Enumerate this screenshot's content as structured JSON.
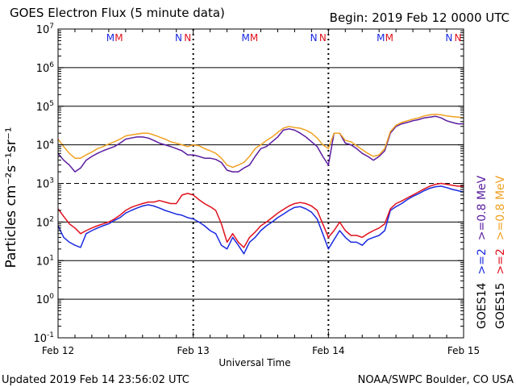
{
  "title": "GOES Electron Flux (5 minute data)",
  "begin_label": "Begin: 2019 Feb 12 0000 UTC",
  "updated_label": "Updated 2019 Feb 14 23:56:02 UTC",
  "credit_label": "NOAA/SWPC Boulder, CO USA",
  "colors": {
    "goes14_ge2": "#1a2ae0",
    "goes15_ge2": "#e0121e",
    "goes14_ge08": "#5a1ca0",
    "goes15_ge08": "#f0a020",
    "m_marker": "#1a2ae0",
    "m_marker_alt": "#e0121e"
  },
  "chart_data": {
    "type": "line",
    "title": "GOES Electron Flux (5 minute data)",
    "xlabel": "Universal Time",
    "ylabel": "Particles cm⁻²s⁻¹sr⁻¹",
    "y_scale": "log",
    "ylim": [
      0.1,
      10000000
    ],
    "xlim": [
      0,
      72
    ],
    "x_unit": "hours since 2019 Feb 12 0000 UTC",
    "x_ticks": [
      {
        "x": 0,
        "label": "Feb 12"
      },
      {
        "x": 24,
        "label": "Feb 13"
      },
      {
        "x": 48,
        "label": "Feb 14"
      },
      {
        "x": 72,
        "label": "Feb 15"
      }
    ],
    "y_ticks": [
      {
        "v": 0.1,
        "base": "10",
        "exp": "-1"
      },
      {
        "v": 1,
        "base": "10",
        "exp": "0"
      },
      {
        "v": 10,
        "base": "10",
        "exp": "1"
      },
      {
        "v": 100,
        "base": "10",
        "exp": "2"
      },
      {
        "v": 1000,
        "base": "10",
        "exp": "3"
      },
      {
        "v": 10000,
        "base": "10",
        "exp": "4"
      },
      {
        "v": 100000,
        "base": "10",
        "exp": "5"
      },
      {
        "v": 1000000,
        "base": "10",
        "exp": "6"
      },
      {
        "v": 10000000,
        "base": "10",
        "exp": "7"
      }
    ],
    "threshold": 1000,
    "markers": [
      {
        "x": 9.3,
        "label": "M",
        "color": "#1a2ae0"
      },
      {
        "x": 10.8,
        "label": "M",
        "color": "#e0121e"
      },
      {
        "x": 21.4,
        "label": "N",
        "color": "#1a2ae0"
      },
      {
        "x": 23.0,
        "label": "N",
        "color": "#e0121e"
      },
      {
        "x": 33.3,
        "label": "M",
        "color": "#1a2ae0"
      },
      {
        "x": 34.8,
        "label": "M",
        "color": "#e0121e"
      },
      {
        "x": 45.4,
        "label": "N",
        "color": "#1a2ae0"
      },
      {
        "x": 47.0,
        "label": "N",
        "color": "#e0121e"
      },
      {
        "x": 57.3,
        "label": "M",
        "color": "#1a2ae0"
      },
      {
        "x": 58.8,
        "label": "M",
        "color": "#e0121e"
      },
      {
        "x": 69.4,
        "label": "N",
        "color": "#1a2ae0"
      },
      {
        "x": 71.0,
        "label": "N",
        "color": "#e0121e"
      }
    ],
    "legend": {
      "left_col": [
        "GOES14",
        ">=2",
        ">=0.8 MeV"
      ],
      "right_col": [
        "GOES15",
        ">=2",
        ">=0.8 MeV"
      ],
      "left_colors": [
        "#000000",
        "#1a2ae0",
        "#5a1ca0"
      ],
      "right_colors": [
        "#000000",
        "#e0121e",
        "#f0a020"
      ]
    },
    "series": [
      {
        "name": "GOES14 >=0.8 MeV",
        "color": "#5a1ca0",
        "x": [
          0,
          1,
          2,
          3,
          4,
          5,
          6,
          7,
          8,
          9,
          10,
          11,
          12,
          13,
          14,
          15,
          16,
          17,
          18,
          19,
          20,
          21,
          22,
          23,
          24,
          25,
          26,
          27,
          28,
          29,
          30,
          31,
          32,
          33,
          34,
          35,
          36,
          37,
          38,
          39,
          40,
          41,
          42,
          43,
          44,
          45,
          46,
          47,
          48,
          49,
          50,
          51,
          52,
          53,
          54,
          55,
          56,
          57,
          58,
          59,
          60,
          61,
          62,
          63,
          64,
          65,
          66,
          67,
          68,
          69,
          70,
          71,
          72
        ],
        "values": [
          6000,
          4000,
          3000,
          2000,
          2500,
          4000,
          5000,
          6000,
          7000,
          8000,
          9000,
          11000,
          14000,
          15000,
          16000,
          16000,
          15000,
          13000,
          11000,
          10000,
          9000,
          8000,
          7000,
          5500,
          5500,
          5000,
          4500,
          4500,
          4200,
          3500,
          2200,
          2000,
          2000,
          2500,
          3000,
          5000,
          8000,
          9000,
          12000,
          16000,
          24000,
          26000,
          24000,
          20000,
          16000,
          12000,
          9000,
          5000,
          3000,
          20000,
          20000,
          11000,
          10000,
          8000,
          6000,
          5000,
          4000,
          5000,
          7000,
          20000,
          30000,
          35000,
          38000,
          42000,
          45000,
          50000,
          52000,
          55000,
          50000,
          42000,
          38000,
          35000,
          35000
        ]
      },
      {
        "name": "GOES15 >=0.8 MeV",
        "color": "#f0a020",
        "x": [
          0,
          1,
          2,
          3,
          4,
          5,
          6,
          7,
          8,
          9,
          10,
          11,
          12,
          13,
          14,
          15,
          16,
          17,
          18,
          19,
          20,
          21,
          22,
          23,
          24,
          25,
          26,
          27,
          28,
          29,
          30,
          31,
          32,
          33,
          34,
          35,
          36,
          37,
          38,
          39,
          40,
          41,
          42,
          43,
          44,
          45,
          46,
          47,
          48,
          49,
          50,
          51,
          52,
          53,
          54,
          55,
          56,
          57,
          58,
          59,
          60,
          61,
          62,
          63,
          64,
          65,
          66,
          67,
          68,
          69,
          70,
          71,
          72
        ],
        "values": [
          14000,
          9000,
          6000,
          4500,
          4500,
          5500,
          6500,
          8000,
          9000,
          10500,
          12000,
          14000,
          17000,
          18000,
          19000,
          20000,
          20000,
          18000,
          16000,
          14000,
          12000,
          11000,
          10000,
          9000,
          10000,
          9500,
          8000,
          7000,
          6000,
          4500,
          3000,
          2600,
          3000,
          3500,
          5000,
          8000,
          10000,
          13000,
          16000,
          21000,
          27000,
          30000,
          28000,
          27000,
          24000,
          20000,
          15000,
          10000,
          8000,
          20000,
          20000,
          13000,
          12000,
          9500,
          7500,
          6000,
          5000,
          5500,
          8000,
          22000,
          32000,
          38000,
          42000,
          46000,
          50000,
          56000,
          60000,
          62000,
          60000,
          56000,
          54000,
          52000,
          50000
        ]
      },
      {
        "name": "GOES14 >=2 MeV",
        "color": "#1a2ae0",
        "x": [
          0,
          1,
          2,
          3,
          4,
          5,
          6,
          7,
          8,
          9,
          10,
          11,
          12,
          13,
          14,
          15,
          16,
          17,
          18,
          19,
          20,
          21,
          22,
          23,
          24,
          25,
          26,
          27,
          28,
          29,
          30,
          31,
          32,
          33,
          34,
          35,
          36,
          37,
          38,
          39,
          40,
          41,
          42,
          43,
          44,
          45,
          46,
          47,
          48,
          49,
          50,
          51,
          52,
          53,
          54,
          55,
          56,
          57,
          58,
          59,
          60,
          61,
          62,
          63,
          64,
          65,
          66,
          67,
          68,
          69,
          70,
          71,
          72
        ],
        "values": [
          80,
          40,
          30,
          25,
          22,
          50,
          60,
          70,
          80,
          90,
          110,
          130,
          170,
          200,
          230,
          260,
          280,
          260,
          230,
          200,
          180,
          160,
          150,
          130,
          120,
          100,
          80,
          60,
          50,
          25,
          20,
          40,
          25,
          15,
          30,
          40,
          60,
          80,
          100,
          130,
          160,
          200,
          240,
          250,
          220,
          180,
          120,
          50,
          20,
          35,
          60,
          40,
          30,
          30,
          25,
          35,
          40,
          45,
          60,
          200,
          250,
          300,
          380,
          460,
          540,
          650,
          750,
          820,
          850,
          780,
          700,
          650,
          600
        ]
      },
      {
        "name": "GOES15 >=2 MeV",
        "color": "#e0121e",
        "x": [
          0,
          1,
          2,
          3,
          4,
          5,
          6,
          7,
          8,
          9,
          10,
          11,
          12,
          13,
          14,
          15,
          16,
          17,
          18,
          19,
          20,
          21,
          22,
          23,
          24,
          25,
          26,
          27,
          28,
          29,
          30,
          31,
          32,
          33,
          34,
          35,
          36,
          37,
          38,
          39,
          40,
          41,
          42,
          43,
          44,
          45,
          46,
          47,
          48,
          49,
          50,
          51,
          52,
          53,
          54,
          55,
          56,
          57,
          58,
          59,
          60,
          61,
          62,
          63,
          64,
          65,
          66,
          67,
          68,
          69,
          70,
          71,
          72
        ],
        "values": [
          220,
          140,
          90,
          70,
          50,
          60,
          70,
          80,
          90,
          100,
          120,
          150,
          200,
          240,
          270,
          300,
          330,
          330,
          360,
          330,
          300,
          300,
          500,
          550,
          500,
          380,
          300,
          250,
          200,
          90,
          30,
          50,
          30,
          22,
          40,
          55,
          80,
          100,
          130,
          170,
          210,
          260,
          300,
          320,
          300,
          260,
          200,
          90,
          40,
          60,
          100,
          60,
          45,
          45,
          40,
          50,
          60,
          70,
          90,
          220,
          300,
          350,
          420,
          500,
          600,
          720,
          850,
          950,
          1000,
          950,
          900,
          850,
          850
        ]
      }
    ]
  }
}
